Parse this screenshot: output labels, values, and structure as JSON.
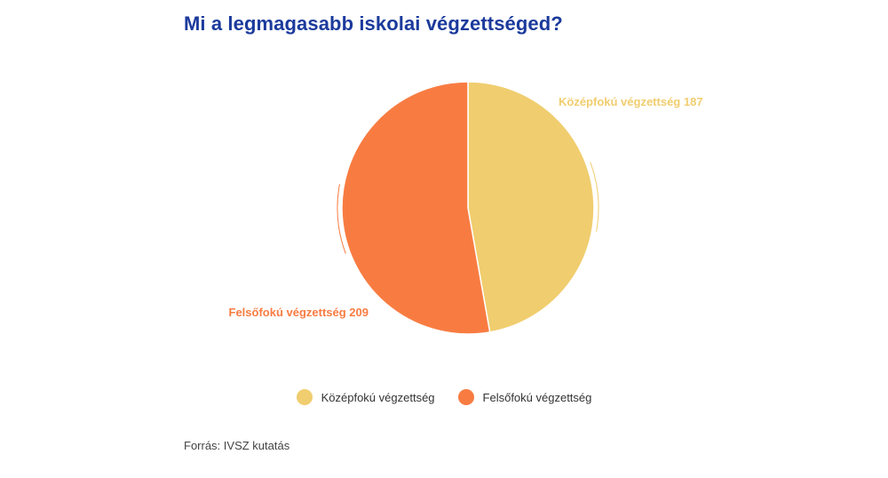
{
  "title": "Mi a legmagasabb iskolai végzettséged?",
  "source": "Forrás: IVSZ kutatás",
  "chart_data": {
    "type": "pie",
    "title": "Mi a legmagasabb iskolai végzettséged?",
    "slices": [
      {
        "label": "Középfokú végzettség",
        "value": 187,
        "color": "#f0cd6e",
        "data_label": "Középfokú végzettség 187"
      },
      {
        "label": "Felsőfokú végzettség",
        "value": 209,
        "color": "#f87c42",
        "data_label": "Felsőfokú végzettség 209"
      }
    ],
    "legend": "bottom-center"
  }
}
